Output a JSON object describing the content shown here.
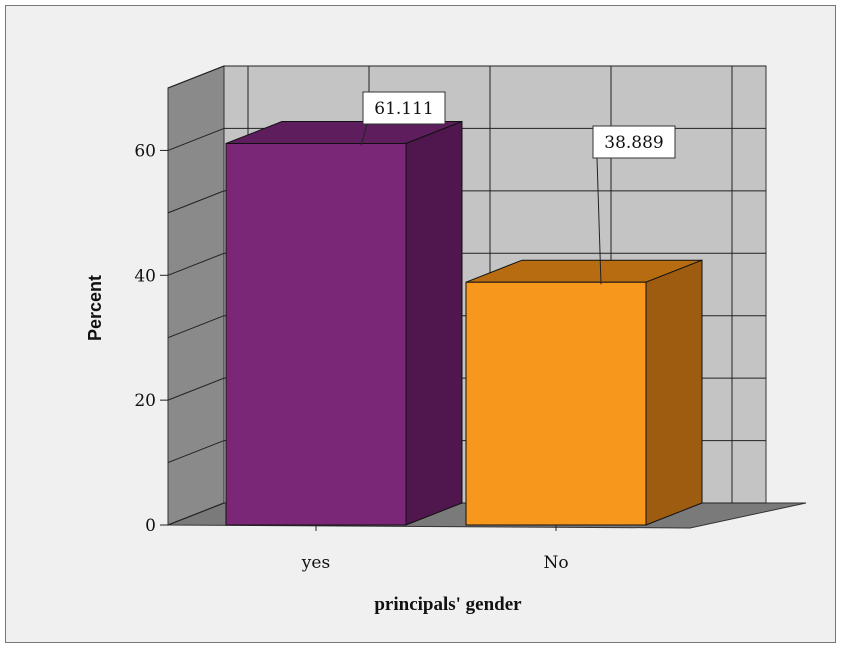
{
  "chart_data": {
    "type": "bar",
    "categories": [
      "yes",
      "No"
    ],
    "values": [
      61.111,
      38.889
    ],
    "data_labels": [
      "61.111",
      "38.889"
    ],
    "title": "",
    "xlabel": "principals' gender",
    "ylabel": "Percent",
    "ylim": [
      0,
      70
    ],
    "yticks": [
      0,
      20,
      40,
      60
    ],
    "ytick_labels": [
      "0",
      "20",
      "40",
      "60"
    ],
    "grid": true,
    "style": "3d",
    "colors": {
      "bars": [
        "#7b2778",
        "#f7981d"
      ],
      "bar_sides": [
        "#4f174d",
        "#9e5c11"
      ],
      "bar_tops": [
        "#5e1d5c",
        "#b86c12"
      ],
      "wall_back": "#c4c4c4",
      "wall_side": "#8a8a8a",
      "floor": "#7a7a7a",
      "background": "#f0f0f0"
    }
  }
}
